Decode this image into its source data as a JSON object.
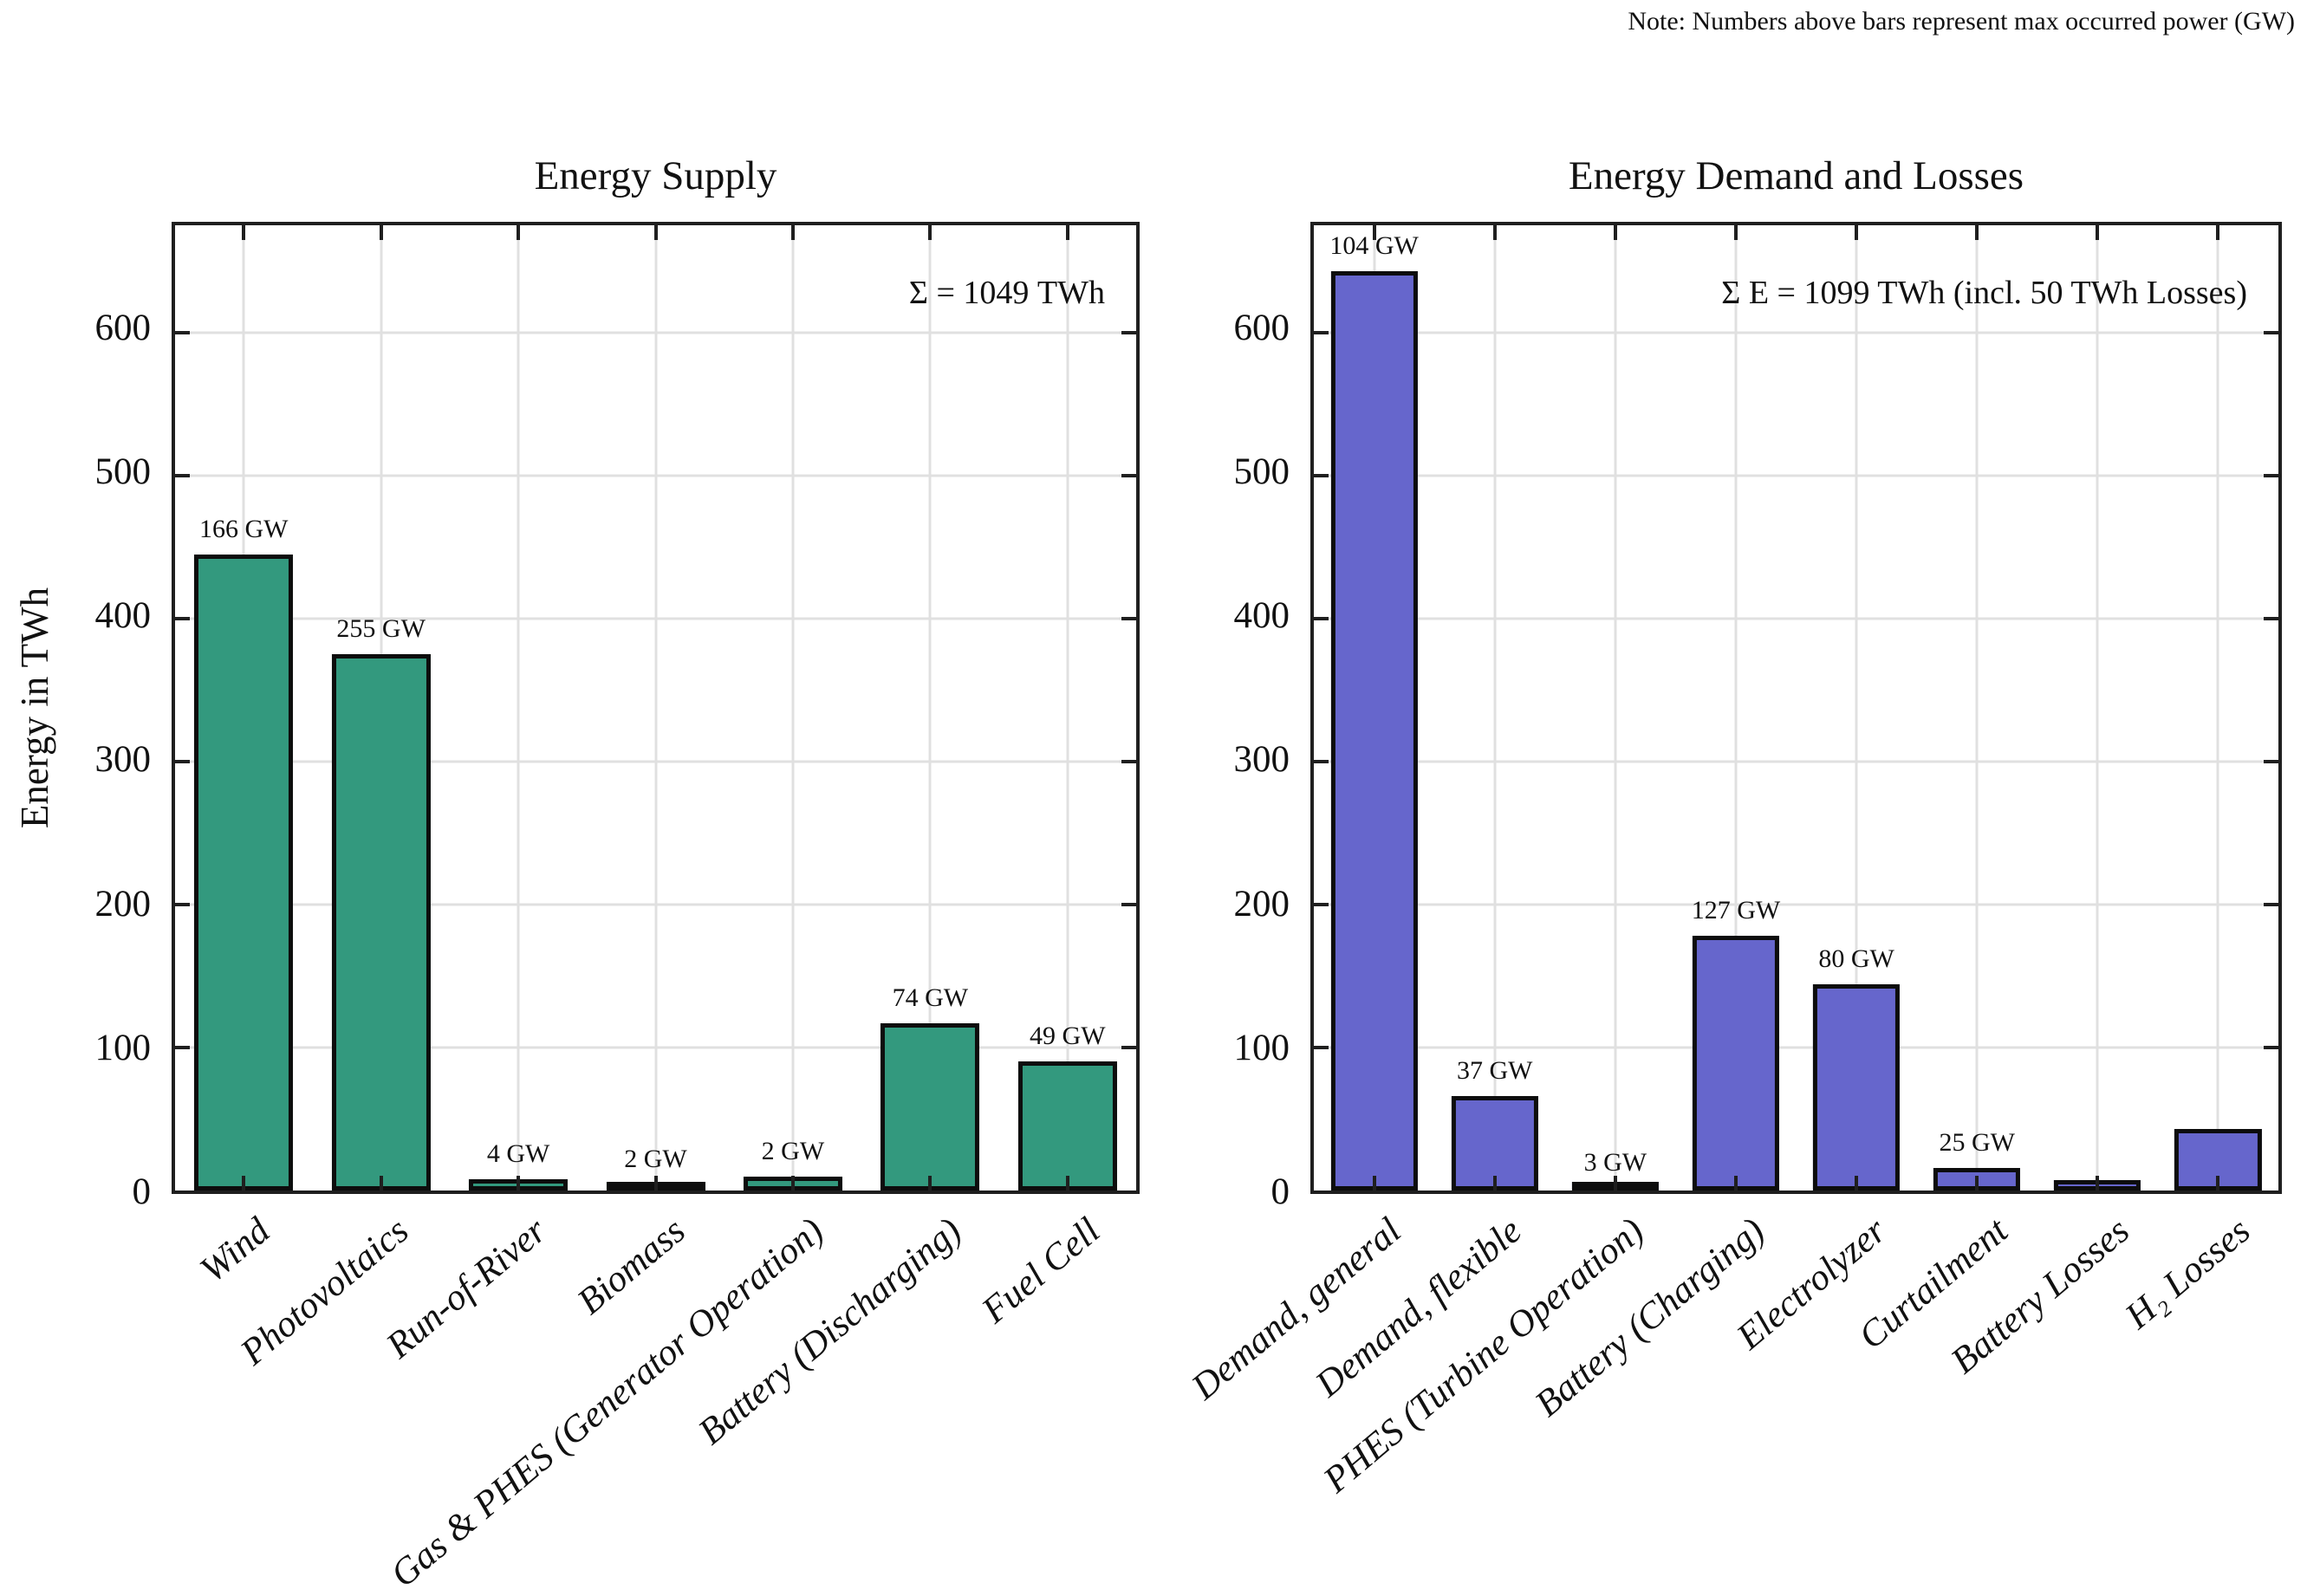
{
  "note": "Note: Numbers above bars represent max occurred power (GW)",
  "chart_data": [
    {
      "type": "bar",
      "title": "Energy Supply",
      "ylabel": "Energy in TWh",
      "categories": [
        "Wind",
        "Photovoltaics",
        "Run-of-River",
        "Biomass",
        "Gas & PHES (Generator Operation)",
        "Battery (Discharging)",
        "Fuel Cell"
      ],
      "values": [
        445,
        375,
        8,
        4,
        10,
        117,
        90
      ],
      "value_unit": "TWh",
      "bar_labels": [
        "166 GW",
        "255 GW",
        "4 GW",
        "2 GW",
        "2 GW",
        "74 GW",
        "49 GW"
      ],
      "annotation": "Σ = 1049 TWh",
      "yticks": [
        0,
        100,
        200,
        300,
        400,
        500,
        600
      ],
      "ylim": [
        0,
        675
      ],
      "grid": true,
      "legend": "none",
      "bar_color": "#33997E",
      "bar_edge_color": "#0d0d0d"
    },
    {
      "type": "bar",
      "title": "Energy Demand and Losses",
      "ylabel": "",
      "categories": [
        "Demand, general",
        "Demand, flexible",
        "PHES (Turbine Operation)",
        "Battery (Charging)",
        "Electrolyzer",
        "Curtailment",
        "Battery Losses",
        "H₂ Losses"
      ],
      "values": [
        643,
        66,
        2,
        178,
        144,
        16,
        7,
        43
      ],
      "value_unit": "TWh",
      "bar_labels": [
        "104 GW",
        "37 GW",
        "3 GW",
        "127 GW",
        "80 GW",
        "25 GW",
        "",
        ""
      ],
      "annotation": "Σ E = 1099 TWh (incl. 50 TWh Losses)",
      "yticks": [
        0,
        100,
        200,
        300,
        400,
        500,
        600
      ],
      "ylim": [
        0,
        675
      ],
      "grid": true,
      "legend": "none",
      "bar_color": "#6666CC",
      "bar_edge_color": "#0d0d0d"
    }
  ],
  "colors": {
    "grid": "#E0E0E0",
    "axis": "#1F1F1F",
    "background": "#FFFFFF"
  }
}
